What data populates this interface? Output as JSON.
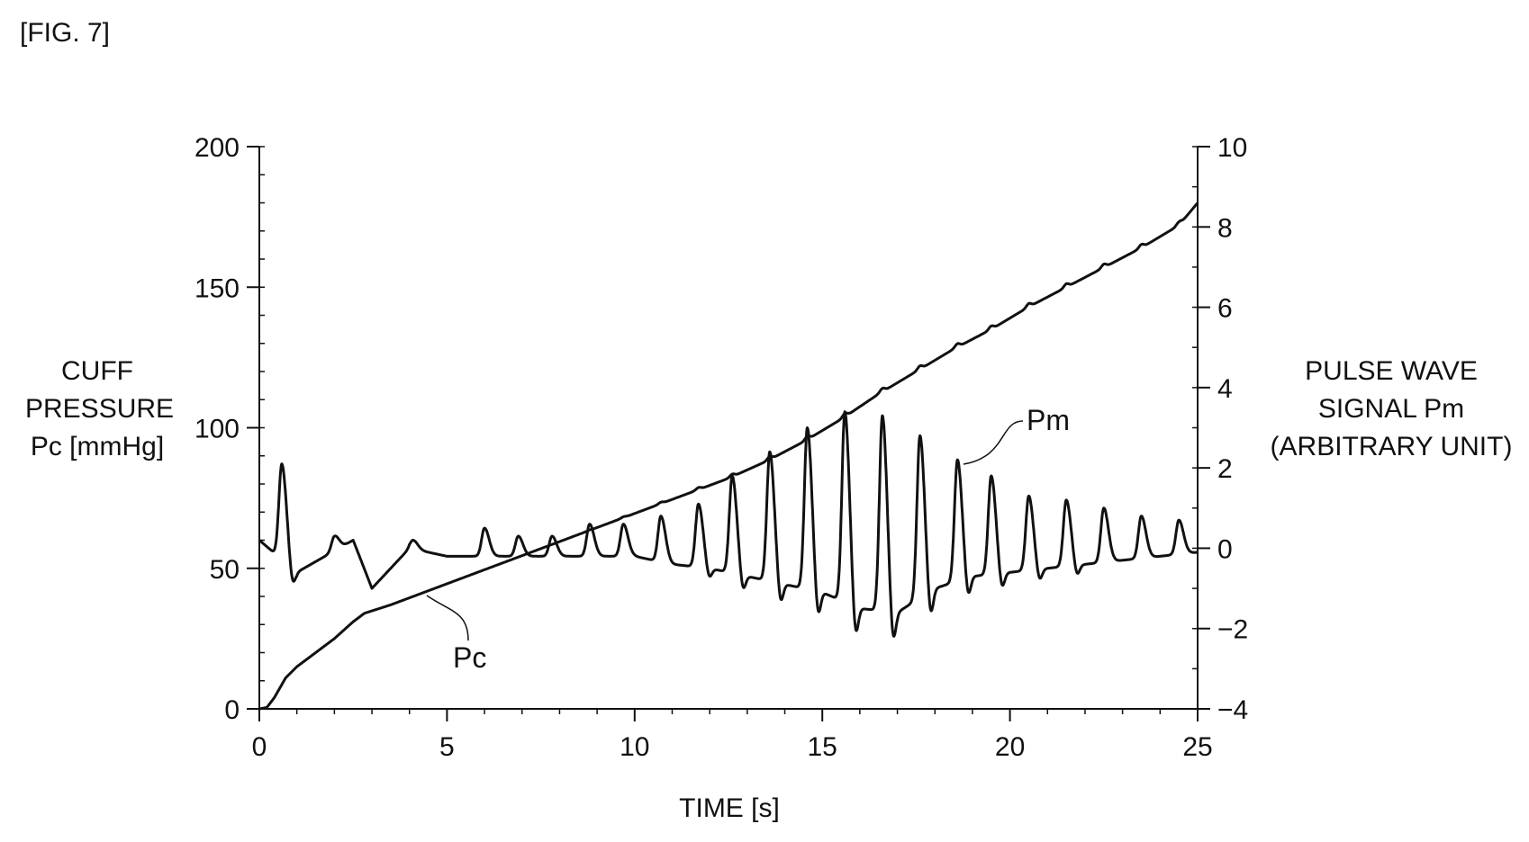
{
  "figure_label": "[FIG. 7]",
  "chart_data": {
    "type": "line",
    "title": "",
    "xlabel": "TIME [s]",
    "ylabel_left": [
      "CUFF",
      "PRESSURE",
      "Pc [mmHg]"
    ],
    "ylabel_right": [
      "PULSE WAVE",
      "SIGNAL Pm",
      "(ARBITRARY UNIT)"
    ],
    "xlim": [
      0,
      25
    ],
    "ylim_left": [
      0,
      200
    ],
    "ylim_right": [
      -4,
      10
    ],
    "x_ticks": [
      0,
      5,
      10,
      15,
      20,
      25
    ],
    "y_ticks_left": [
      0,
      50,
      100,
      150,
      200
    ],
    "y_ticks_right": [
      -4,
      -2,
      0,
      2,
      4,
      6,
      8,
      10
    ],
    "grid": false,
    "legend": "none",
    "series": [
      {
        "name": "Pc",
        "axis": "left",
        "label": "Pc",
        "x": [
          0,
          0.2,
          0.4,
          0.7,
          1.0,
          1.5,
          2.0,
          2.5,
          2.8,
          3.5,
          4.5,
          5.5,
          6.5,
          7.5,
          8.5,
          9.5,
          10.5,
          11.5,
          12.5,
          13.5,
          14.5,
          15.5,
          16.5,
          17.5,
          18.5,
          19.5,
          20.5,
          21.5,
          22.5,
          23.5,
          24.5,
          25.0
        ],
        "values": [
          0,
          0.5,
          4,
          11,
          15,
          20,
          25,
          31,
          34,
          37,
          42,
          47,
          52,
          57,
          62,
          67,
          72,
          77,
          82,
          88,
          95,
          103,
          112,
          120,
          128,
          135,
          143,
          150,
          157,
          164,
          172,
          180
        ]
      },
      {
        "name": "Pm",
        "axis": "right",
        "label": "Pm",
        "baseline": [
          [
            0,
            0.2
          ],
          [
            1.0,
            -0.6
          ],
          [
            2.5,
            0.2
          ],
          [
            3.0,
            -1.0
          ],
          [
            4.0,
            0
          ],
          [
            5.0,
            -0.2
          ],
          [
            6.0,
            -0.2
          ],
          [
            7.0,
            -0.2
          ],
          [
            8.0,
            -0.2
          ],
          [
            9.0,
            -0.2
          ],
          [
            10.0,
            -0.2
          ],
          [
            11.0,
            -0.4
          ],
          [
            12.0,
            -0.5
          ],
          [
            13.0,
            -0.7
          ],
          [
            14.0,
            -0.9
          ],
          [
            15.0,
            -1.1
          ],
          [
            16.0,
            -1.5
          ],
          [
            17.0,
            -1.6
          ],
          [
            18.0,
            -1.0
          ],
          [
            19.0,
            -0.7
          ],
          [
            20.0,
            -0.6
          ],
          [
            21.0,
            -0.5
          ],
          [
            22.0,
            -0.4
          ],
          [
            23.0,
            -0.3
          ],
          [
            24.0,
            -0.2
          ],
          [
            25.0,
            -0.1
          ]
        ],
        "peaks": [
          {
            "t": 0.6,
            "v": 2.1
          },
          {
            "t": 2.0,
            "v": 0.3
          },
          {
            "t": 4.1,
            "v": 0.2
          },
          {
            "t": 6.0,
            "v": 0.5
          },
          {
            "t": 6.9,
            "v": 0.3
          },
          {
            "t": 7.8,
            "v": 0.3
          },
          {
            "t": 8.8,
            "v": 0.6
          },
          {
            "t": 9.7,
            "v": 0.6
          },
          {
            "t": 10.7,
            "v": 0.8
          },
          {
            "t": 11.7,
            "v": 1.1
          },
          {
            "t": 12.6,
            "v": 1.8
          },
          {
            "t": 13.6,
            "v": 2.4
          },
          {
            "t": 14.6,
            "v": 3.0
          },
          {
            "t": 15.6,
            "v": 3.4
          },
          {
            "t": 16.6,
            "v": 3.3
          },
          {
            "t": 17.6,
            "v": 2.8
          },
          {
            "t": 18.6,
            "v": 2.2
          },
          {
            "t": 19.5,
            "v": 1.8
          },
          {
            "t": 20.5,
            "v": 1.3
          },
          {
            "t": 21.5,
            "v": 1.2
          },
          {
            "t": 22.5,
            "v": 1.0
          },
          {
            "t": 23.5,
            "v": 0.8
          },
          {
            "t": 24.5,
            "v": 0.7
          }
        ]
      }
    ],
    "annotations": [
      {
        "text": "Pm",
        "series": "Pm"
      },
      {
        "text": "Pc",
        "series": "Pc"
      }
    ]
  }
}
